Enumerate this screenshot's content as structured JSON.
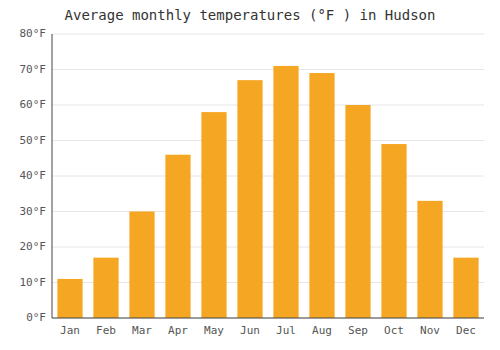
{
  "chart_data": {
    "type": "bar",
    "title": "Average monthly temperatures (°F ) in Hudson",
    "categories": [
      "Jan",
      "Feb",
      "Mar",
      "Apr",
      "May",
      "Jun",
      "Jul",
      "Aug",
      "Sep",
      "Oct",
      "Nov",
      "Dec"
    ],
    "values": [
      11,
      17,
      30,
      46,
      58,
      67,
      71,
      69,
      60,
      49,
      33,
      17
    ],
    "color": "#F5A623",
    "ylim": [
      0,
      80
    ],
    "yticks": [
      {
        "value": 0,
        "label": "0°F"
      },
      {
        "value": 10,
        "label": "10°F"
      },
      {
        "value": 20,
        "label": "20°F"
      },
      {
        "value": 30,
        "label": "30°F"
      },
      {
        "value": 40,
        "label": "40°F"
      },
      {
        "value": 50,
        "label": "50°F"
      },
      {
        "value": 60,
        "label": "60°F"
      },
      {
        "value": 70,
        "label": "70°F"
      },
      {
        "value": 80,
        "label": "80°F"
      }
    ],
    "grid": true
  }
}
